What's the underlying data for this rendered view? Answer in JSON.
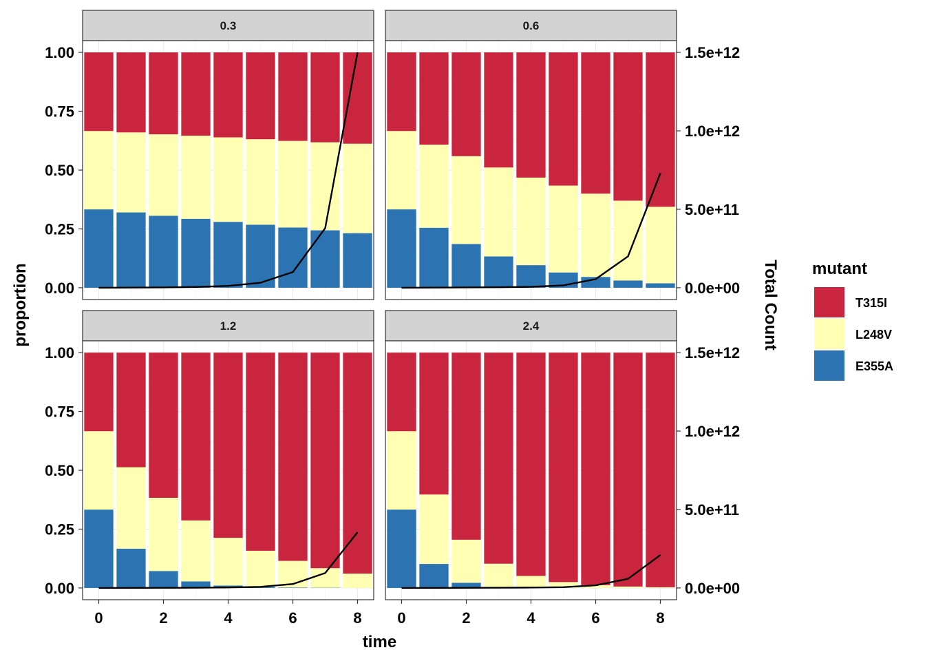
{
  "chart_data": {
    "type": "bar",
    "subtype": "stacked-proportion-with-line-overlay",
    "facets": [
      {
        "label": "0.3",
        "x": [
          0,
          1,
          2,
          3,
          4,
          5,
          6,
          7,
          8
        ],
        "series": [
          {
            "name": "E355A",
            "values": [
              0.333,
              0.32,
              0.306,
              0.293,
              0.28,
              0.268,
              0.256,
              0.244,
              0.232
            ]
          },
          {
            "name": "L248V",
            "values": [
              0.333,
              0.34,
              0.346,
              0.353,
              0.359,
              0.363,
              0.368,
              0.374,
              0.38
            ]
          },
          {
            "name": "T315I",
            "values": [
              0.334,
              0.34,
              0.348,
              0.354,
              0.361,
              0.369,
              0.376,
              0.382,
              0.388
            ]
          }
        ],
        "total_count": [
          0,
          1000000000,
          2000000000,
          5000000000,
          12000000000,
          32000000000,
          100000000000,
          380000000000,
          1500000000000
        ]
      },
      {
        "label": "0.6",
        "x": [
          0,
          1,
          2,
          3,
          4,
          5,
          6,
          7,
          8
        ],
        "series": [
          {
            "name": "E355A",
            "values": [
              0.333,
              0.255,
              0.186,
              0.133,
              0.096,
              0.065,
              0.046,
              0.031,
              0.019
            ]
          },
          {
            "name": "L248V",
            "values": [
              0.333,
              0.353,
              0.373,
              0.378,
              0.372,
              0.369,
              0.354,
              0.339,
              0.325
            ]
          },
          {
            "name": "T315I",
            "values": [
              0.334,
              0.392,
              0.441,
              0.489,
              0.532,
              0.566,
              0.6,
              0.63,
              0.656
            ]
          }
        ],
        "total_count": [
          0,
          1000000000,
          2000000000,
          3000000000,
          6000000000,
          15000000000,
          55000000000,
          200000000000,
          730000000000
        ]
      },
      {
        "label": "1.2",
        "x": [
          0,
          1,
          2,
          3,
          4,
          5,
          6,
          7,
          8
        ],
        "series": [
          {
            "name": "E355A",
            "values": [
              0.333,
              0.167,
              0.072,
              0.028,
              0.01,
              0.004,
              0.002,
              0.001,
              0.0
            ]
          },
          {
            "name": "L248V",
            "values": [
              0.333,
              0.346,
              0.311,
              0.259,
              0.203,
              0.154,
              0.113,
              0.083,
              0.061
            ]
          },
          {
            "name": "T315I",
            "values": [
              0.334,
              0.487,
              0.617,
              0.713,
              0.787,
              0.842,
              0.885,
              0.916,
              0.939
            ]
          }
        ],
        "total_count": [
          0,
          500000000,
          1000000000,
          1500000000,
          3000000000,
          7000000000,
          25000000000,
          95000000000,
          355000000000
        ]
      },
      {
        "label": "2.4",
        "x": [
          0,
          1,
          2,
          3,
          4,
          5,
          6,
          7,
          8
        ],
        "series": [
          {
            "name": "E355A",
            "values": [
              0.333,
              0.102,
              0.022,
              0.004,
              0.001,
              0.0,
              0.0,
              0.0,
              0.0
            ]
          },
          {
            "name": "L248V",
            "values": [
              0.333,
              0.295,
              0.183,
              0.099,
              0.05,
              0.025,
              0.012,
              0.006,
              0.003
            ]
          },
          {
            "name": "T315I",
            "values": [
              0.334,
              0.603,
              0.795,
              0.897,
              0.949,
              0.975,
              0.988,
              0.994,
              0.997
            ]
          }
        ],
        "total_count": [
          0,
          500000000,
          1000000000,
          1500000000,
          2500000000,
          5000000000,
          17000000000,
          58000000000,
          210000000000
        ]
      }
    ],
    "xlabel": "time",
    "ylabel": "proportion",
    "y2label": "Total Count",
    "xticks": [
      0,
      2,
      4,
      6,
      8
    ],
    "xtick_labels": [
      "0",
      "2",
      "4",
      "6",
      "8"
    ],
    "xlim": [
      -0.5,
      8.5
    ],
    "yticks": [
      0,
      0.25,
      0.5,
      0.75,
      1
    ],
    "ytick_labels": [
      "0.00",
      "0.25",
      "0.50",
      "0.75",
      "1.00"
    ],
    "ylim": [
      -0.05,
      1.05
    ],
    "y2ticks": [
      0,
      500000000000,
      1000000000000,
      1500000000000
    ],
    "y2tick_labels": [
      "0.0e+00",
      "5.0e+11",
      "1.0e+12",
      "1.5e+12"
    ],
    "y2_scale_max": 1500000000000,
    "legend": {
      "title": "mutant",
      "entries": [
        {
          "name": "T315I",
          "color": "#c9253f"
        },
        {
          "name": "L248V",
          "color": "#ffffb3"
        },
        {
          "name": "E355A",
          "color": "#2c74b1"
        }
      ],
      "position": "right"
    },
    "colors": {
      "T315I": "#c9253f",
      "L248V": "#ffffb3",
      "E355A": "#2c74b1",
      "line": "#000000"
    },
    "grid": true
  }
}
